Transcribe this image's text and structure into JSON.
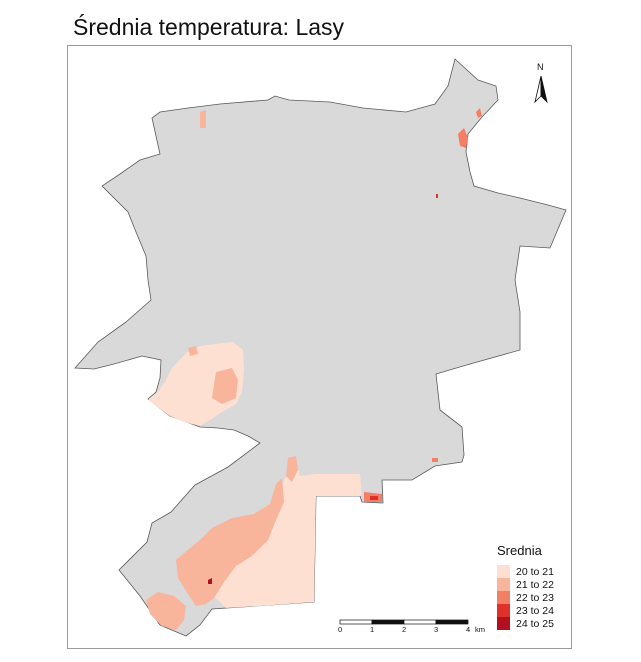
{
  "title": "Średnia temperatura: Lasy",
  "legend": {
    "title": "Srednia",
    "items": [
      {
        "label": "20 to 21",
        "color": "#fde0d2"
      },
      {
        "label": "21 to 22",
        "color": "#f9b49c"
      },
      {
        "label": "22 to 23",
        "color": "#f47e66"
      },
      {
        "label": "23 to 24",
        "color": "#e0302a"
      },
      {
        "label": "24 to 25",
        "color": "#b3101f"
      }
    ]
  },
  "scalebar": {
    "ticks": [
      "0",
      "1",
      "2",
      "3",
      "4"
    ],
    "unit": "km"
  },
  "north_arrow": {
    "label": "N"
  },
  "colors": {
    "base_area": "#d9d9d9",
    "outline": "#5a5a5a"
  }
}
